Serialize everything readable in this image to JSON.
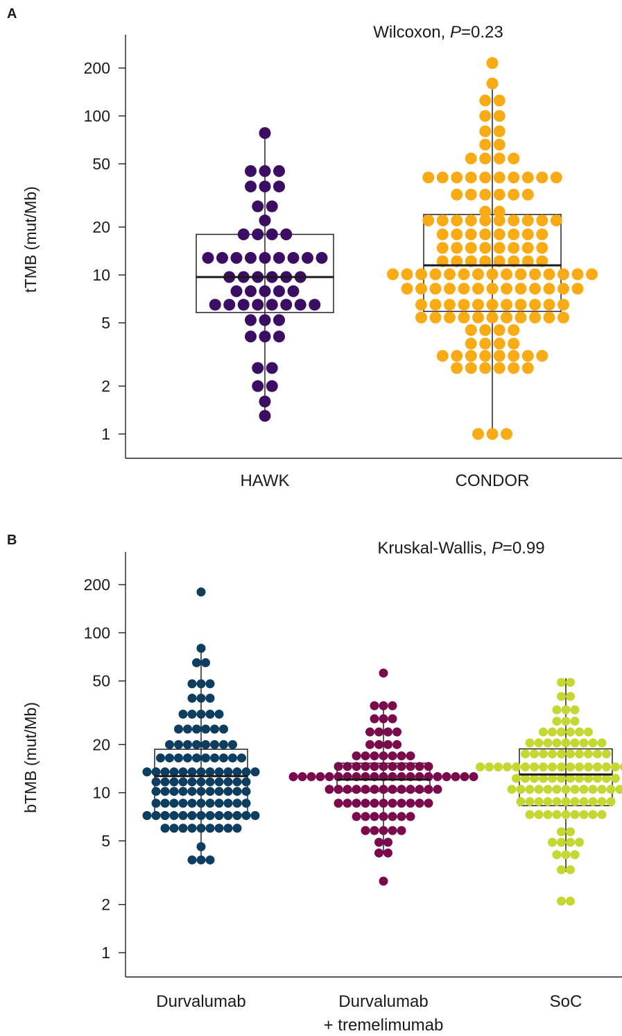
{
  "chart_data": [
    {
      "panel": "A",
      "type": "scatter",
      "subtype": "beeswarm with box plot",
      "stat_test": "Wilcoxon, ",
      "stat_p_italic": "P",
      "stat_p_value": "=0.23",
      "ylabel": "tTMB (mut/Mb)",
      "yscale": "log",
      "ylim": [
        0.8,
        300
      ],
      "yticks": [
        1,
        2,
        5,
        10,
        20,
        50,
        100,
        200
      ],
      "ytick_labels": [
        "1",
        "2",
        "5",
        "10",
        "20",
        "50",
        "100",
        "200"
      ],
      "categories": [
        "HAWK",
        "CONDOR"
      ],
      "groups": [
        {
          "category": "HAWK",
          "color": "#3b0e63",
          "box": {
            "q1": 5.8,
            "median": 9.7,
            "q3": 18,
            "whisker_low": 1.3,
            "whisker_high": 78
          },
          "points": [
            {
              "y": 78,
              "n": 1
            },
            {
              "y": 45,
              "n": 3
            },
            {
              "y": 36,
              "n": 3
            },
            {
              "y": 27,
              "n": 2
            },
            {
              "y": 22,
              "n": 1
            },
            {
              "y": 18,
              "n": 4
            },
            {
              "y": 12.8,
              "n": 9
            },
            {
              "y": 9.7,
              "n": 6
            },
            {
              "y": 7.9,
              "n": 5
            },
            {
              "y": 6.5,
              "n": 8
            },
            {
              "y": 5.2,
              "n": 3
            },
            {
              "y": 4.1,
              "n": 3
            },
            {
              "y": 2.6,
              "n": 2
            },
            {
              "y": 2.0,
              "n": 2
            },
            {
              "y": 1.6,
              "n": 1
            },
            {
              "y": 1.3,
              "n": 1
            }
          ]
        },
        {
          "category": "CONDOR",
          "color": "#f9ab16",
          "box": {
            "q1": 5.9,
            "median": 11.5,
            "q3": 24,
            "whisker_low": 1.0,
            "whisker_high": 160
          },
          "points": [
            {
              "y": 215,
              "n": 1
            },
            {
              "y": 160,
              "n": 1
            },
            {
              "y": 125,
              "n": 2
            },
            {
              "y": 100,
              "n": 2
            },
            {
              "y": 80,
              "n": 2
            },
            {
              "y": 66,
              "n": 2
            },
            {
              "y": 54,
              "n": 4
            },
            {
              "y": 41,
              "n": 10
            },
            {
              "y": 32,
              "n": 6
            },
            {
              "y": 25,
              "n": 2
            },
            {
              "y": 22,
              "n": 10
            },
            {
              "y": 18,
              "n": 8
            },
            {
              "y": 14.8,
              "n": 8
            },
            {
              "y": 12.2,
              "n": 8
            },
            {
              "y": 10.1,
              "n": 15
            },
            {
              "y": 8.2,
              "n": 13
            },
            {
              "y": 6.5,
              "n": 11
            },
            {
              "y": 5.4,
              "n": 11
            },
            {
              "y": 4.5,
              "n": 4
            },
            {
              "y": 3.7,
              "n": 4
            },
            {
              "y": 3.1,
              "n": 8
            },
            {
              "y": 2.6,
              "n": 6
            },
            {
              "y": 1.0,
              "n": 3
            }
          ]
        }
      ]
    },
    {
      "panel": "B",
      "type": "scatter",
      "subtype": "beeswarm with box plot",
      "stat_test": "Kruskal-Wallis, ",
      "stat_p_italic": "P",
      "stat_p_value": "=0.99",
      "ylabel": "bTMB (mut/Mb)",
      "yscale": "log",
      "ylim": [
        0.8,
        300
      ],
      "yticks": [
        1,
        2,
        5,
        10,
        20,
        50,
        100,
        200
      ],
      "ytick_labels": [
        "1",
        "2",
        "5",
        "10",
        "20",
        "50",
        "100",
        "200"
      ],
      "categories": [
        "Durvalumab",
        "Durvalumab\n+ tremelimumab",
        "SoC"
      ],
      "category_lines": [
        [
          "Durvalumab"
        ],
        [
          "Durvalumab",
          "+ tremelimumab"
        ],
        [
          "SoC"
        ]
      ],
      "groups": [
        {
          "category": "Durvalumab",
          "color": "#0d3d5f",
          "box": {
            "q1": 7.3,
            "median": 12.7,
            "q3": 18.7,
            "whisker_low": 3.8,
            "whisker_high": 79
          },
          "points": [
            {
              "y": 180,
              "n": 1
            },
            {
              "y": 80,
              "n": 1
            },
            {
              "y": 65,
              "n": 2
            },
            {
              "y": 48,
              "n": 3
            },
            {
              "y": 39,
              "n": 3
            },
            {
              "y": 31,
              "n": 5
            },
            {
              "y": 25,
              "n": 6
            },
            {
              "y": 20,
              "n": 8
            },
            {
              "y": 16.5,
              "n": 10
            },
            {
              "y": 13.5,
              "n": 13
            },
            {
              "y": 11.7,
              "n": 11
            },
            {
              "y": 10.2,
              "n": 11
            },
            {
              "y": 8.6,
              "n": 11
            },
            {
              "y": 7.2,
              "n": 13
            },
            {
              "y": 6.0,
              "n": 9
            },
            {
              "y": 4.6,
              "n": 1
            },
            {
              "y": 3.8,
              "n": 3
            }
          ]
        },
        {
          "category": "Durvalumab + tremelimumab",
          "color": "#7b0a4c",
          "box": {
            "q1": 10.2,
            "median": 12.1,
            "q3": 15.3,
            "whisker_low": 4.2,
            "whisker_high": 35
          },
          "points": [
            {
              "y": 56,
              "n": 1
            },
            {
              "y": 35,
              "n": 3
            },
            {
              "y": 29,
              "n": 3
            },
            {
              "y": 24,
              "n": 4
            },
            {
              "y": 20,
              "n": 4
            },
            {
              "y": 17,
              "n": 7
            },
            {
              "y": 14.6,
              "n": 11
            },
            {
              "y": 12.6,
              "n": 21
            },
            {
              "y": 10.5,
              "n": 13
            },
            {
              "y": 8.6,
              "n": 11
            },
            {
              "y": 7.1,
              "n": 7
            },
            {
              "y": 5.8,
              "n": 5
            },
            {
              "y": 4.9,
              "n": 2
            },
            {
              "y": 4.2,
              "n": 2
            },
            {
              "y": 2.8,
              "n": 1
            }
          ]
        },
        {
          "category": "SoC",
          "color": "#c5d732",
          "box": {
            "q1": 8.3,
            "median": 13.0,
            "q3": 18.8,
            "whisker_low": 3.2,
            "whisker_high": 52
          },
          "points": [
            {
              "y": 49,
              "n": 2
            },
            {
              "y": 40,
              "n": 2
            },
            {
              "y": 33,
              "n": 3
            },
            {
              "y": 28,
              "n": 3
            },
            {
              "y": 24,
              "n": 6
            },
            {
              "y": 20.5,
              "n": 9
            },
            {
              "y": 17.5,
              "n": 10
            },
            {
              "y": 14.5,
              "n": 20
            },
            {
              "y": 12.3,
              "n": 12
            },
            {
              "y": 10.5,
              "n": 13
            },
            {
              "y": 8.8,
              "n": 11
            },
            {
              "y": 7.3,
              "n": 9
            },
            {
              "y": 5.7,
              "n": 2
            },
            {
              "y": 4.9,
              "n": 4
            },
            {
              "y": 4.1,
              "n": 3
            },
            {
              "y": 3.3,
              "n": 2
            },
            {
              "y": 2.1,
              "n": 2
            }
          ]
        }
      ]
    }
  ]
}
